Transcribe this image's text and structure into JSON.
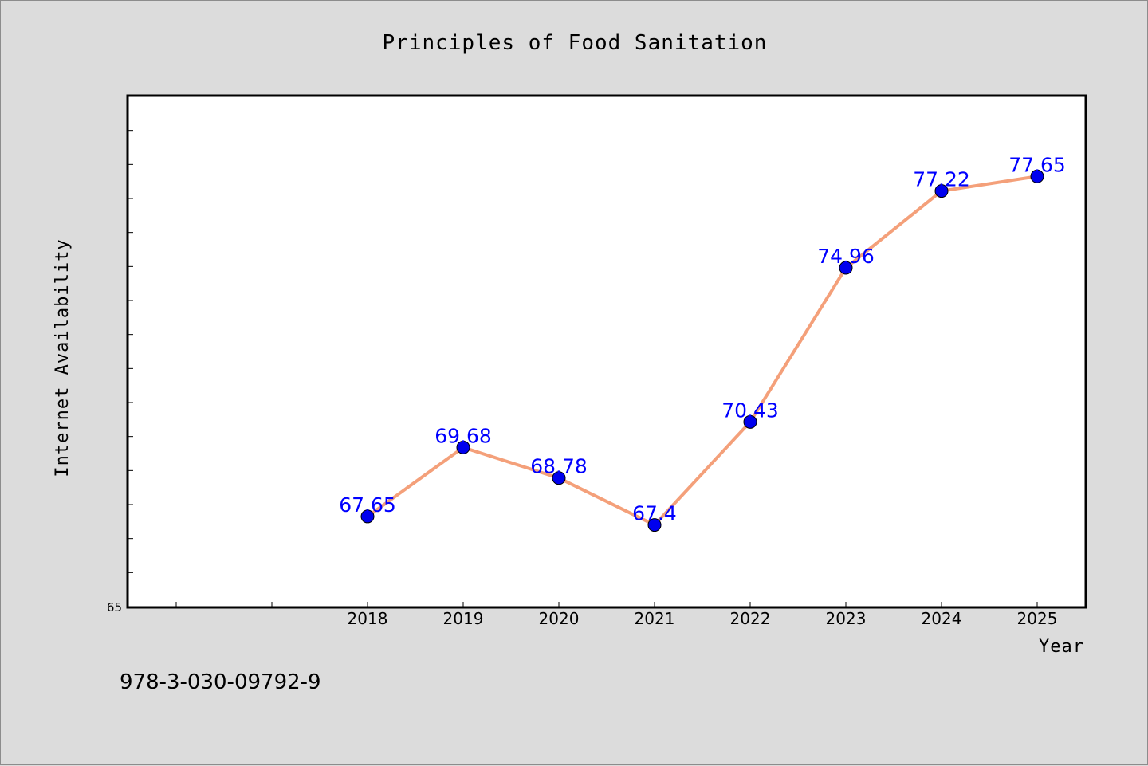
{
  "chart_data": {
    "type": "line",
    "title": "Principles of Food Sanitation",
    "xlabel": "Year",
    "ylabel": "Internet Availability",
    "categories": [
      "2018",
      "2019",
      "2020",
      "2021",
      "2022",
      "2023",
      "2024",
      "2025"
    ],
    "values": [
      67.65,
      69.68,
      68.78,
      67.4,
      70.43,
      74.96,
      77.22,
      77.65
    ],
    "data_labels": [
      "67.65",
      "69.68",
      "68.78",
      "67.4",
      "70.43",
      "74.96",
      "77.22",
      "77.65"
    ],
    "ylim": [
      65,
      80
    ],
    "ymin_label": "65",
    "grid": false,
    "colors": {
      "line": "#f4a07a",
      "marker": "#0000ee",
      "label": "#0000ff",
      "plot_bg": "#ffffff",
      "page_bg": "#dcdcdc"
    }
  },
  "footer": {
    "isbn": "978-3-030-09792-9"
  }
}
